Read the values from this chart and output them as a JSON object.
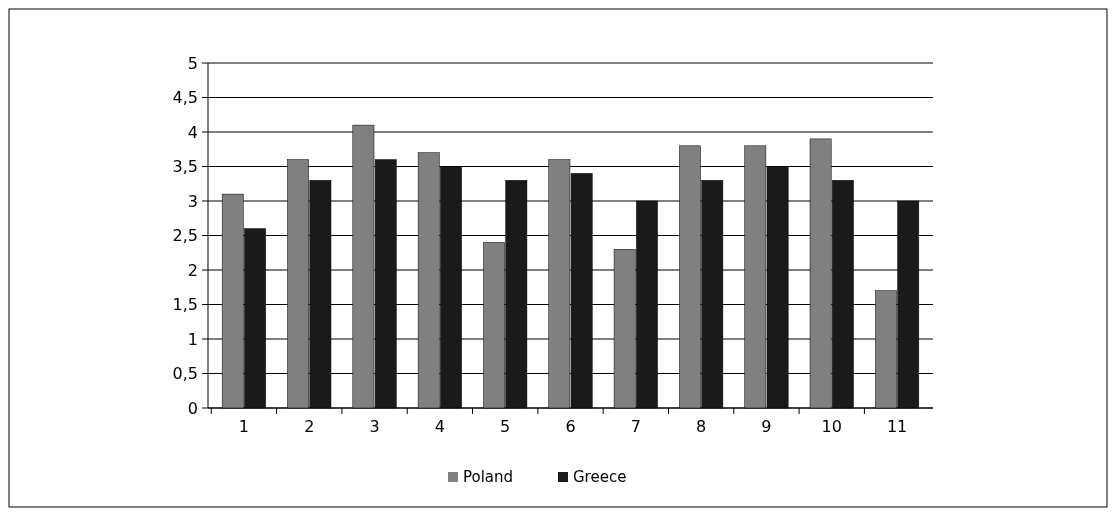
{
  "chart_data": {
    "type": "bar",
    "categories": [
      "1",
      "2",
      "3",
      "4",
      "5",
      "6",
      "7",
      "8",
      "9",
      "10",
      "11"
    ],
    "series": [
      {
        "name": "Poland",
        "color": "#808080",
        "values": [
          3.1,
          3.6,
          4.1,
          3.7,
          2.4,
          3.6,
          2.3,
          3.8,
          3.8,
          3.9,
          1.7
        ]
      },
      {
        "name": "Greece",
        "color": "#1a1a1a",
        "values": [
          2.6,
          3.3,
          3.6,
          3.5,
          3.3,
          3.4,
          3.0,
          3.3,
          3.5,
          3.3,
          3.0
        ]
      }
    ],
    "ylim": [
      0,
      5
    ],
    "yticks": [
      0,
      {
        "value": 0.5,
        "label": "0,5"
      },
      1,
      {
        "value": 1.5,
        "label": "1,5"
      },
      2,
      {
        "value": 2.5,
        "label": "2,5"
      },
      3,
      {
        "value": 3.5,
        "label": "3,5"
      },
      4,
      {
        "value": 4.5,
        "label": "4,5"
      },
      5
    ],
    "grid": "y",
    "legend": "bottom"
  }
}
